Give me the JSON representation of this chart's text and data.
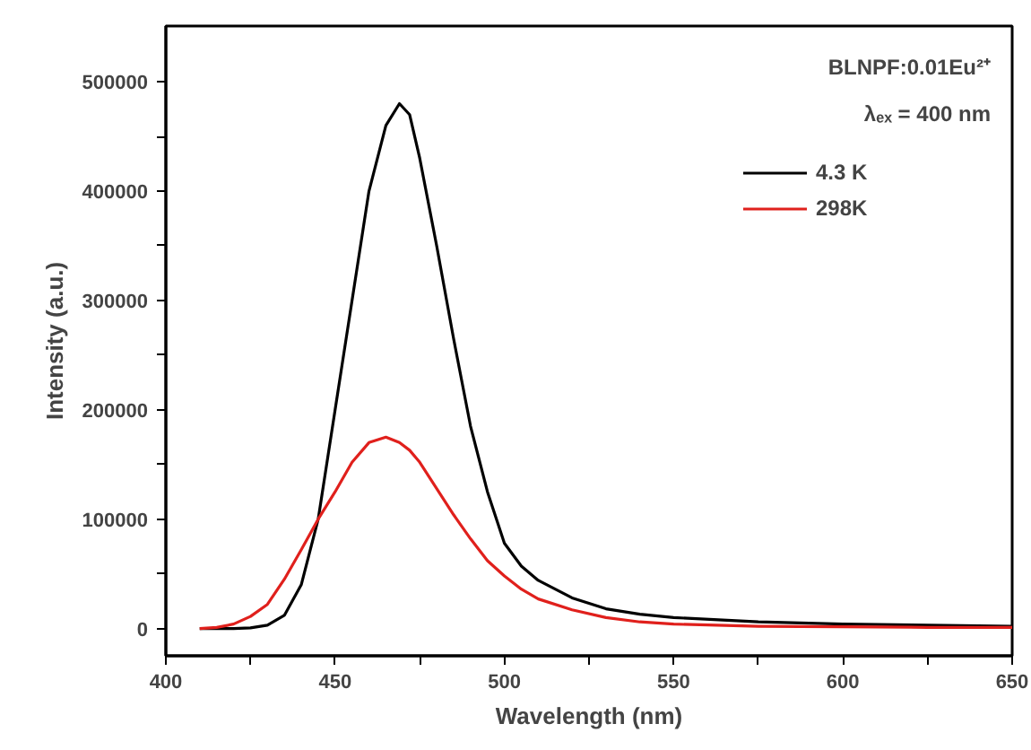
{
  "chart_data": {
    "type": "line",
    "xlabel": "Wavelength (nm)",
    "ylabel": "Intensity (a.u.)",
    "annotations": [
      "BLNPF:0.01Eu²⁺",
      "λₑₓ = 400 nm"
    ],
    "xlim": [
      400,
      650
    ],
    "xticks": [
      400,
      {
        "value": 425,
        "label": null
      },
      450,
      {
        "value": 475,
        "label": null
      },
      500,
      {
        "value": 525,
        "label": null
      },
      550,
      {
        "value": 575,
        "label": null
      },
      600,
      {
        "value": 625,
        "label": null
      },
      650
    ],
    "ylim": [
      -25000,
      551000
    ],
    "yticks": [
      0,
      {
        "value": 50000,
        "label": null
      },
      100000,
      {
        "value": 150000,
        "label": null
      },
      200000,
      {
        "value": 250000,
        "label": null
      },
      300000,
      {
        "value": 350000,
        "label": null
      },
      400000,
      {
        "value": 450000,
        "label": null
      },
      500000
    ],
    "grid": false,
    "legend": "top right",
    "marker": "none",
    "line_style": "solid",
    "x": [
      410,
      415,
      420,
      425,
      430,
      435,
      440,
      445,
      450,
      455,
      460,
      465,
      469,
      472,
      475,
      480,
      485,
      490,
      495,
      500,
      505,
      510,
      520,
      530,
      540,
      550,
      575,
      600,
      625,
      650
    ],
    "series": [
      {
        "name": "4.3 K",
        "color": "#000000",
        "values": [
          0,
          0,
          0,
          500,
          3000,
          12000,
          40000,
          100000,
          200000,
          300000,
          400000,
          460000,
          480000,
          470000,
          430000,
          350000,
          265000,
          185000,
          125000,
          78000,
          57000,
          44000,
          28000,
          18000,
          13000,
          10000,
          6000,
          4000,
          3000,
          2000
        ]
      },
      {
        "name": "298K",
        "color": "#e0201c",
        "values": [
          0,
          1000,
          4000,
          11000,
          22000,
          45000,
          72000,
          100000,
          125000,
          152000,
          170000,
          175000,
          170000,
          163000,
          152000,
          128000,
          104000,
          82000,
          62000,
          48000,
          36000,
          27000,
          17000,
          10000,
          6000,
          4000,
          2000,
          1500,
          1000,
          1000
        ]
      }
    ]
  }
}
